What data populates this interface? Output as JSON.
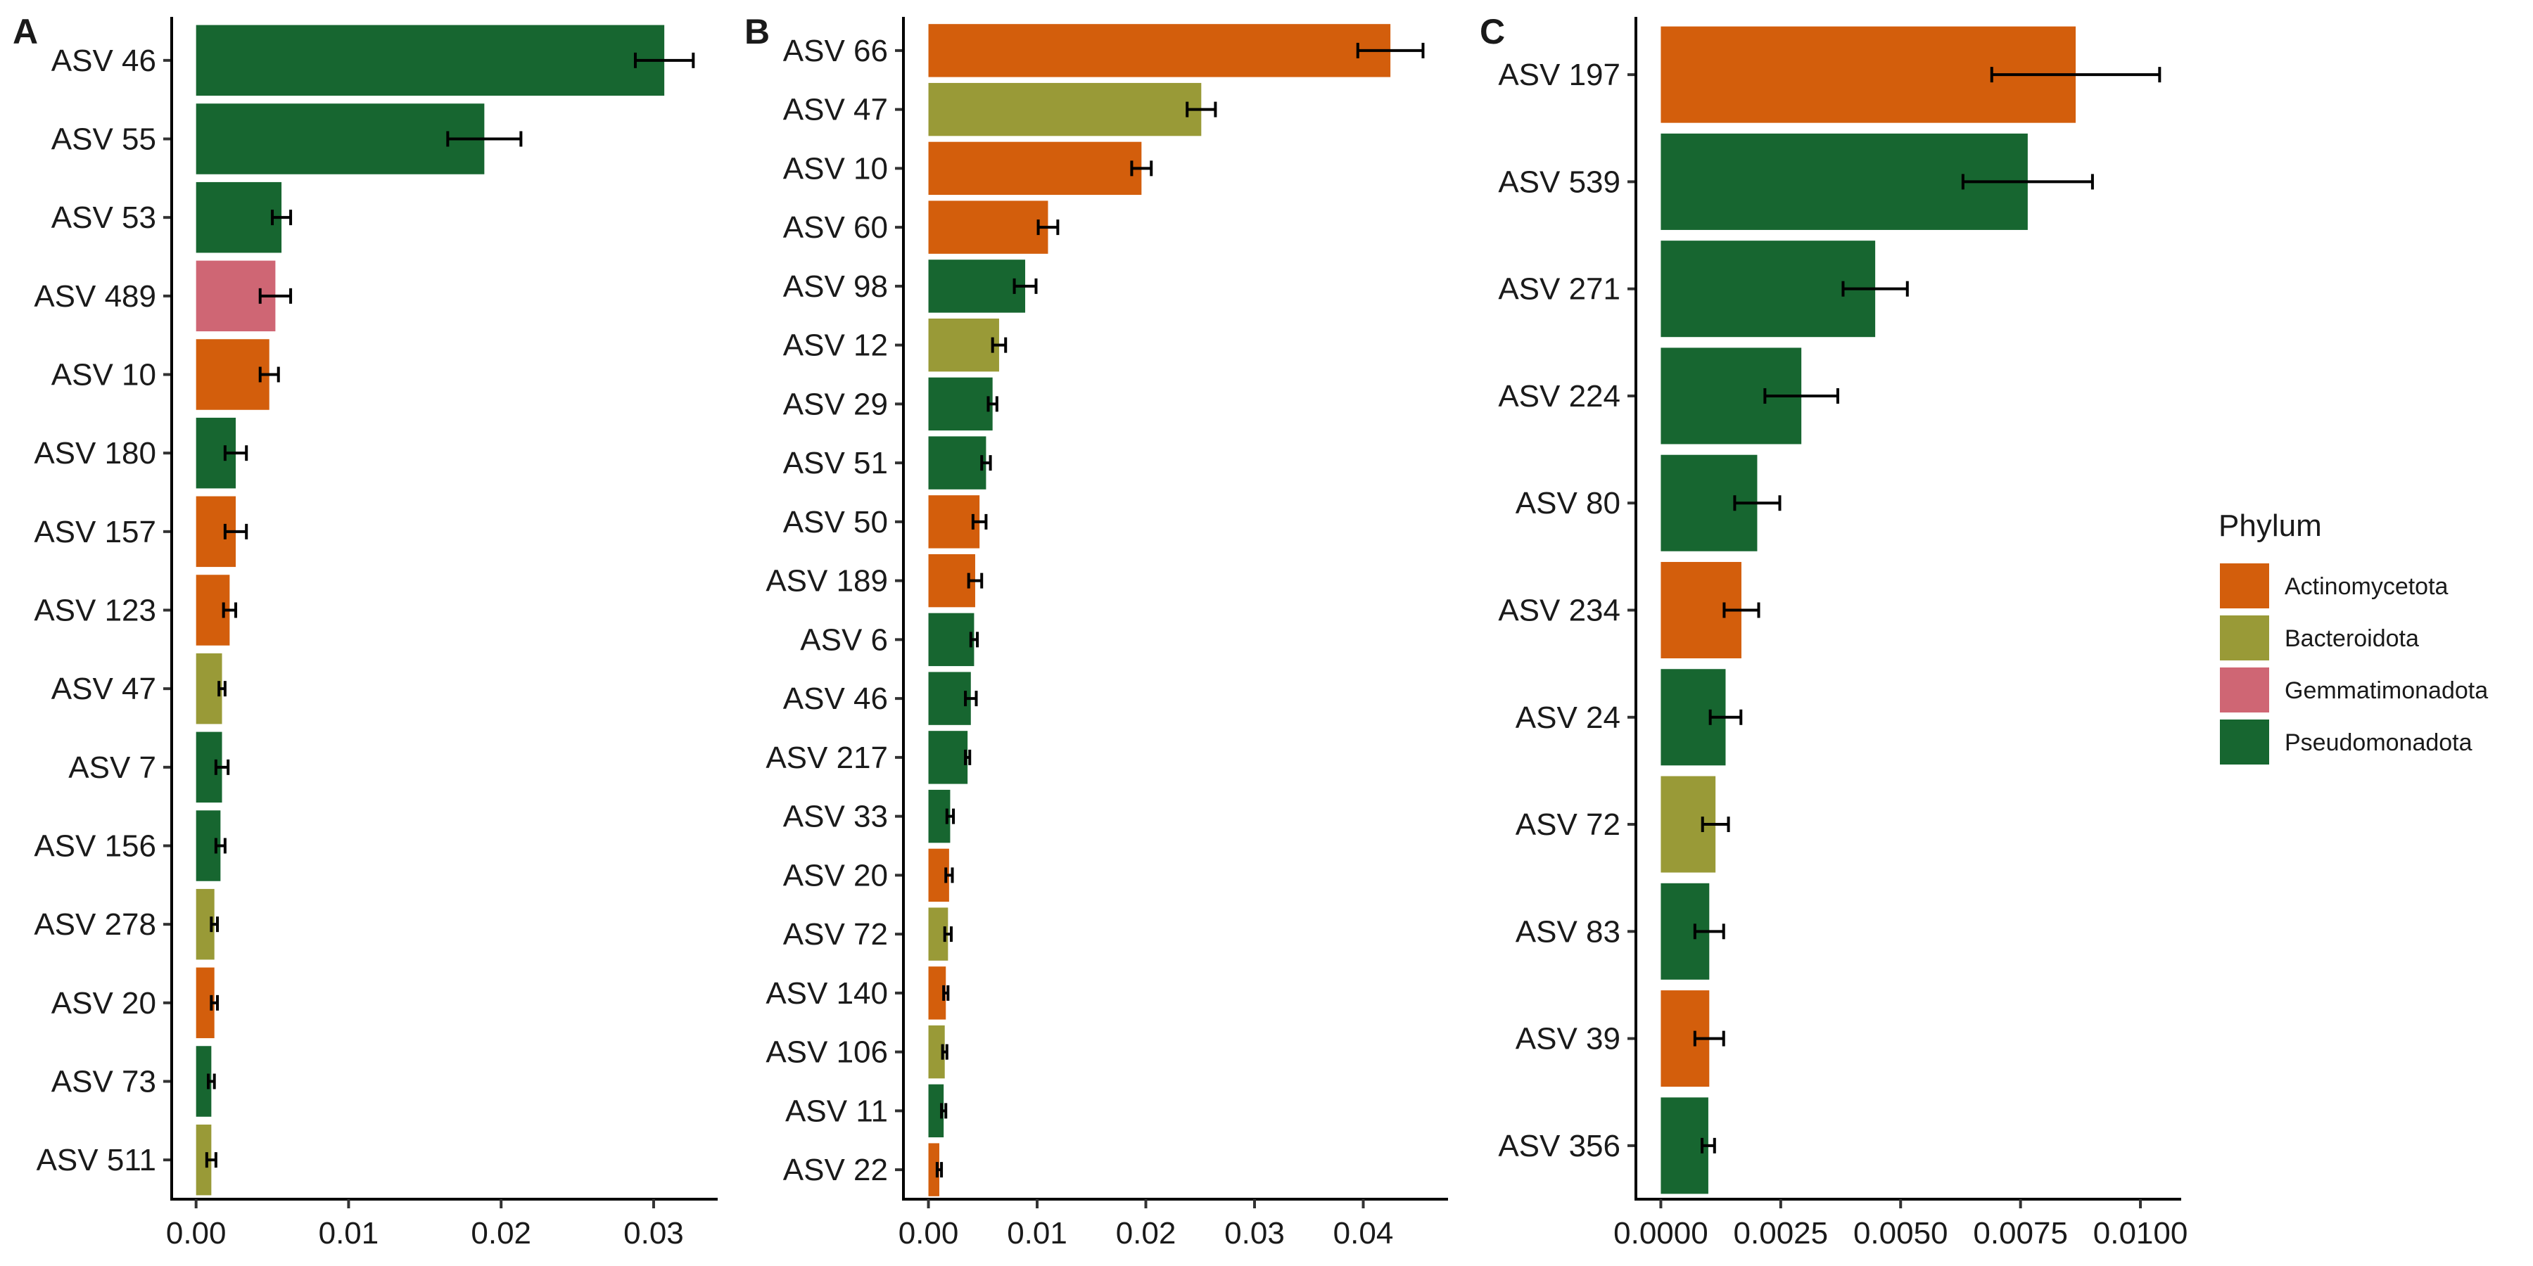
{
  "chart_data": [
    {
      "type": "bar",
      "panel_label": "A",
      "orientation": "horizontal",
      "categories": [
        "ASV 46",
        "ASV 55",
        "ASV 53",
        "ASV 489",
        "ASV 10",
        "ASV 180",
        "ASV 157",
        "ASV 123",
        "ASV 47",
        "ASV 7",
        "ASV 156",
        "ASV 278",
        "ASV 20",
        "ASV 73",
        "ASV 511"
      ],
      "values": [
        0.0307,
        0.0189,
        0.0056,
        0.0052,
        0.0048,
        0.0026,
        0.0026,
        0.0022,
        0.0017,
        0.0017,
        0.0016,
        0.0012,
        0.0012,
        0.001,
        0.001
      ],
      "errors": [
        0.0019,
        0.0024,
        0.0006,
        0.001,
        0.0006,
        0.0007,
        0.0007,
        0.0004,
        0.0002,
        0.0004,
        0.0003,
        0.0002,
        0.0002,
        0.0002,
        0.0003
      ],
      "phylum": [
        "Pseudomonadota",
        "Pseudomonadota",
        "Pseudomonadota",
        "Gemmatimonadota",
        "Actinomycetota",
        "Pseudomonadota",
        "Actinomycetota",
        "Actinomycetota",
        "Bacteroidota",
        "Pseudomonadota",
        "Pseudomonadota",
        "Bacteroidota",
        "Actinomycetota",
        "Pseudomonadota",
        "Bacteroidota"
      ],
      "xlim": [
        -0.0016,
        0.0342
      ],
      "xticks": [
        0,
        0.01,
        0.02,
        0.03
      ],
      "xtick_labels": [
        "0.00",
        "0.01",
        "0.02",
        "0.03"
      ]
    },
    {
      "type": "bar",
      "panel_label": "B",
      "orientation": "horizontal",
      "categories": [
        "ASV 66",
        "ASV 47",
        "ASV 10",
        "ASV 60",
        "ASV 98",
        "ASV 12",
        "ASV 29",
        "ASV 51",
        "ASV 50",
        "ASV 189",
        "ASV 6",
        "ASV 46",
        "ASV 217",
        "ASV 33",
        "ASV 20",
        "ASV 72",
        "ASV 140",
        "ASV 106",
        "ASV 11",
        "ASV 22"
      ],
      "values": [
        0.0425,
        0.0251,
        0.0196,
        0.011,
        0.0089,
        0.0065,
        0.0059,
        0.0053,
        0.0047,
        0.0043,
        0.0042,
        0.0039,
        0.0036,
        0.002,
        0.0019,
        0.0018,
        0.0016,
        0.0015,
        0.0014,
        0.001
      ],
      "errors": [
        0.003,
        0.0013,
        0.0009,
        0.0009,
        0.001,
        0.0006,
        0.0004,
        0.0004,
        0.0006,
        0.0006,
        0.0003,
        0.0005,
        0.0002,
        0.0003,
        0.0003,
        0.0003,
        0.0002,
        0.0002,
        0.0002,
        0.0002
      ],
      "phylum": [
        "Actinomycetota",
        "Bacteroidota",
        "Actinomycetota",
        "Actinomycetota",
        "Pseudomonadota",
        "Bacteroidota",
        "Pseudomonadota",
        "Pseudomonadota",
        "Actinomycetota",
        "Actinomycetota",
        "Pseudomonadota",
        "Pseudomonadota",
        "Pseudomonadota",
        "Pseudomonadota",
        "Actinomycetota",
        "Bacteroidota",
        "Actinomycetota",
        "Bacteroidota",
        "Pseudomonadota",
        "Actinomycetota"
      ],
      "xlim": [
        -0.0023,
        0.0478
      ],
      "xticks": [
        0,
        0.01,
        0.02,
        0.03,
        0.04
      ],
      "xtick_labels": [
        "0.00",
        "0.01",
        "0.02",
        "0.03",
        "0.04"
      ]
    },
    {
      "type": "bar",
      "panel_label": "C",
      "orientation": "horizontal",
      "categories": [
        "ASV 197",
        "ASV 539",
        "ASV 271",
        "ASV 224",
        "ASV 80",
        "ASV 234",
        "ASV 24",
        "ASV 72",
        "ASV 83",
        "ASV 39",
        "ASV 356"
      ],
      "values": [
        0.00865,
        0.00765,
        0.00447,
        0.00293,
        0.00201,
        0.00168,
        0.00135,
        0.00114,
        0.00101,
        0.00101,
        0.00099
      ],
      "errors": [
        0.00175,
        0.00135,
        0.00067,
        0.00076,
        0.00047,
        0.00036,
        0.00032,
        0.00027,
        0.0003,
        0.0003,
        0.00013
      ],
      "phylum": [
        "Actinomycetota",
        "Pseudomonadota",
        "Pseudomonadota",
        "Pseudomonadota",
        "Pseudomonadota",
        "Actinomycetota",
        "Pseudomonadota",
        "Bacteroidota",
        "Pseudomonadota",
        "Actinomycetota",
        "Pseudomonadota"
      ],
      "xlim": [
        -0.00052,
        0.01085
      ],
      "xticks": [
        0,
        0.0025,
        0.005,
        0.0075,
        0.01
      ],
      "xtick_labels": [
        "0.0000",
        "0.0025",
        "0.0050",
        "0.0075",
        "0.0100"
      ]
    }
  ],
  "legend": {
    "title": "Phylum",
    "items": [
      {
        "label": "Actinomycetota",
        "color": "#D35E0C"
      },
      {
        "label": "Bacteroidota",
        "color": "#999A37"
      },
      {
        "label": "Gemmatimonadota",
        "color": "#CF6674"
      },
      {
        "label": "Pseudomonadota",
        "color": "#176630"
      }
    ]
  },
  "colors": {
    "Actinomycetota": "#D35E0C",
    "Bacteroidota": "#999A37",
    "Gemmatimonadota": "#CF6674",
    "Pseudomonadota": "#176630"
  }
}
